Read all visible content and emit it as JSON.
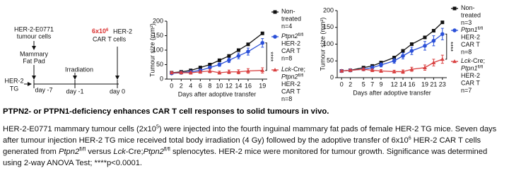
{
  "schematic": {
    "tumour_cells": [
      "HER-2-E0771",
      "tumour cells"
    ],
    "fat_pad": [
      "Mammary",
      "Fat Pad"
    ],
    "mouse": [
      "HER-2",
      "TG"
    ],
    "irradiation": "Irradiation",
    "car_t_dose": [
      {
        "text": "6x10",
        "style": "normal"
      },
      {
        "text": "6",
        "style": "sup"
      }
    ],
    "car_t_lines": [
      "HER-2",
      "CAR T cells"
    ],
    "days": [
      "day -7",
      "day -1",
      "day 0"
    ]
  },
  "chart_data": [
    {
      "type": "line",
      "ylabel": "Tumour size (mm²)",
      "xlabel": "Days after adoptive transfer",
      "x": [
        0,
        2,
        4,
        6,
        8,
        10,
        12,
        14,
        16,
        19
      ],
      "xlim": [
        -1,
        20
      ],
      "xticks": [
        0,
        2,
        4,
        6,
        8,
        10,
        12,
        14,
        16,
        19
      ],
      "ylim": [
        0,
        200
      ],
      "yticks": [
        0,
        50,
        100,
        150,
        200
      ],
      "annotation": "****",
      "series": [
        {
          "color": "#111111",
          "marker": "square",
          "values": [
            22,
            25,
            30,
            40,
            50,
            65,
            80,
            100,
            120,
            158
          ],
          "legend": [
            [
              {
                "text": "Non-",
                "style": "normal"
              }
            ],
            [
              {
                "text": "treated",
                "style": "normal"
              }
            ],
            [
              {
                "text": "n=4",
                "style": "normal"
              }
            ]
          ]
        },
        {
          "color": "#2b50d8",
          "marker": "circle",
          "values": [
            20,
            22,
            25,
            30,
            40,
            50,
            65,
            80,
            95,
            125
          ],
          "errors": [
            3,
            3,
            4,
            5,
            5,
            6,
            8,
            10,
            12,
            15
          ],
          "legend": [
            [
              {
                "text": "Ptpn2",
                "style": "italic"
              },
              {
                "text": "fl/fl",
                "style": "sup"
              }
            ],
            [
              {
                "text": "HER-2",
                "style": "normal"
              }
            ],
            [
              {
                "text": "CAR T",
                "style": "normal"
              }
            ],
            [
              {
                "text": "n=8",
                "style": "normal"
              }
            ]
          ]
        },
        {
          "color": "#d94040",
          "marker": "triangle",
          "values": [
            22,
            22,
            22,
            25,
            28,
            22,
            25,
            25,
            28,
            30
          ],
          "errors": [
            4,
            4,
            5,
            5,
            6,
            5,
            6,
            7,
            8,
            9
          ],
          "legend": [
            [
              {
                "text": "Lck",
                "style": "italic"
              },
              {
                "text": "-Cre;",
                "style": "normal"
              }
            ],
            [
              {
                "text": "Ptpn2",
                "style": "italic"
              },
              {
                "text": "fl/fl",
                "style": "sup"
              }
            ],
            [
              {
                "text": "HER-2",
                "style": "normal"
              }
            ],
            [
              {
                "text": "CAR T",
                "style": "normal"
              }
            ],
            [
              {
                "text": "n=8",
                "style": "normal"
              }
            ]
          ]
        }
      ]
    },
    {
      "type": "line",
      "ylabel": "Tumour size (mm²)",
      "xlabel": "Days after adoptive transfer",
      "x": [
        0,
        2,
        5,
        7,
        9,
        12,
        14,
        16,
        19,
        21,
        23
      ],
      "xlim": [
        -1,
        24
      ],
      "xticks": [
        0,
        2,
        5,
        7,
        9,
        12,
        14,
        16,
        19,
        21,
        23
      ],
      "ylim": [
        0,
        200
      ],
      "yticks": [
        0,
        50,
        100,
        150,
        200
      ],
      "annotation": "****",
      "series": [
        {
          "color": "#111111",
          "marker": "square",
          "values": [
            20,
            22,
            30,
            35,
            45,
            60,
            80,
            100,
            120,
            140,
            165
          ],
          "legend": [
            [
              {
                "text": "Non-",
                "style": "normal"
              }
            ],
            [
              {
                "text": "treated",
                "style": "normal"
              }
            ],
            [
              {
                "text": "n=3",
                "style": "normal"
              }
            ]
          ]
        },
        {
          "color": "#2b50d8",
          "marker": "circle",
          "values": [
            20,
            22,
            25,
            30,
            38,
            50,
            65,
            80,
            95,
            110,
            130
          ],
          "errors": [
            3,
            3,
            4,
            5,
            6,
            7,
            9,
            11,
            13,
            15,
            17
          ],
          "legend": [
            [
              {
                "text": "Ptpn1",
                "style": "italic"
              },
              {
                "text": "fl/fl",
                "style": "sup"
              }
            ],
            [
              {
                "text": "HER-2",
                "style": "normal"
              }
            ],
            [
              {
                "text": "CAR T",
                "style": "normal"
              }
            ],
            [
              {
                "text": "n=8",
                "style": "normal"
              }
            ]
          ]
        },
        {
          "color": "#d94040",
          "marker": "triangle",
          "values": [
            20,
            22,
            25,
            22,
            20,
            18,
            18,
            25,
            30,
            45,
            55
          ],
          "errors": [
            3,
            3,
            4,
            4,
            4,
            4,
            5,
            6,
            8,
            10,
            12
          ],
          "legend": [
            [
              {
                "text": "Lck",
                "style": "italic"
              },
              {
                "text": "-Cre;",
                "style": "normal"
              }
            ],
            [
              {
                "text": "Ptpn1",
                "style": "italic"
              },
              {
                "text": "fl/fl",
                "style": "sup"
              }
            ],
            [
              {
                "text": "HER-2",
                "style": "normal"
              }
            ],
            [
              {
                "text": "CAR T",
                "style": "normal"
              }
            ],
            [
              {
                "text": "n=7",
                "style": "normal"
              }
            ]
          ]
        }
      ]
    }
  ],
  "caption": {
    "title": "PTPN2- or PTPN1-deficiency enhances CAR T cell responses to solid tumours in vivo.",
    "body": [
      {
        "text": "HER-2-E0771 mammary tumour cells (2x10",
        "style": "normal"
      },
      {
        "text": "5",
        "style": "sup"
      },
      {
        "text": ") were injected into the fourth inguinal mammary fat pads of female HER-2 TG mice. Seven days after tumour injection HER-2 TG mice received total body irradiation (4 Gy) followed by the adoptive transfer of 6x10",
        "style": "normal"
      },
      {
        "text": "6",
        "style": "sup"
      },
      {
        "text": " HER-2 CAR T cells generated from ",
        "style": "normal"
      },
      {
        "text": "Ptpn2",
        "style": "italic"
      },
      {
        "text": "fl/fl",
        "style": "sup"
      },
      {
        "text": " versus ",
        "style": "normal"
      },
      {
        "text": "Lck",
        "style": "italic"
      },
      {
        "text": "-Cre;",
        "style": "normal"
      },
      {
        "text": "Ptpn2",
        "style": "italic"
      },
      {
        "text": "fl/fl",
        "style": "sup"
      },
      {
        "text": " splenocytes. HER-2 mice were monitored for tumour growth. Significance was determined using 2-way ANOVA Test; ****p<0.0001.",
        "style": "normal"
      }
    ]
  }
}
